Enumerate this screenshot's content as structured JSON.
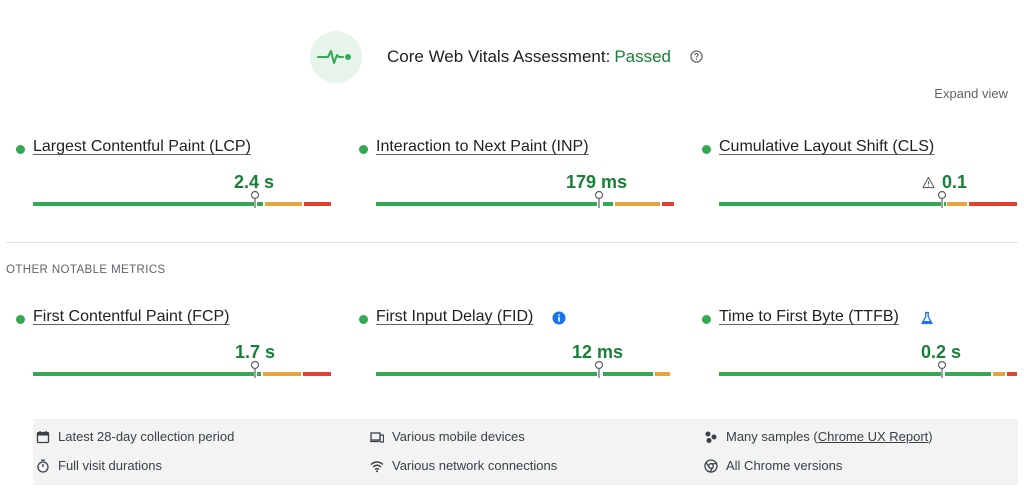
{
  "assessment": {
    "title": "Core Web Vitals Assessment:",
    "status": "Passed",
    "icon": "pulse-icon",
    "help_icon": "help-circle-icon"
  },
  "expand_view": "Expand view",
  "colors": {
    "good": "#34a853",
    "good_text": "#188038",
    "needs_improvement": "#e8a33d",
    "poor": "#e0402f"
  },
  "core_metrics": [
    {
      "name": "Largest Contentful Paint (LCP)",
      "value": "2.4 s",
      "status": "good"
    },
    {
      "name": "Interaction to Next Paint (INP)",
      "value": "179 ms",
      "status": "good"
    },
    {
      "name": "Cumulative Layout Shift (CLS)",
      "value": "0.1",
      "status": "good",
      "value_icon": "warning-triangle-icon"
    }
  ],
  "other_label": "OTHER NOTABLE METRICS",
  "other_metrics": [
    {
      "name": "First Contentful Paint (FCP)",
      "value": "1.7 s",
      "status": "good"
    },
    {
      "name": "First Input Delay (FID)",
      "value": "12 ms",
      "status": "good",
      "name_icon": "info-icon"
    },
    {
      "name": "Time to First Byte (TTFB)",
      "value": "0.2 s",
      "status": "good",
      "name_icon": "flask-icon"
    }
  ],
  "footer": {
    "collection_period": "Latest 28-day collection period",
    "visit_durations": "Full visit durations",
    "devices": "Various mobile devices",
    "connections": "Various network connections",
    "samples_prefix": "Many samples (",
    "samples_link": "Chrome UX Report",
    "samples_suffix": ")",
    "chrome_versions": "All Chrome versions"
  }
}
